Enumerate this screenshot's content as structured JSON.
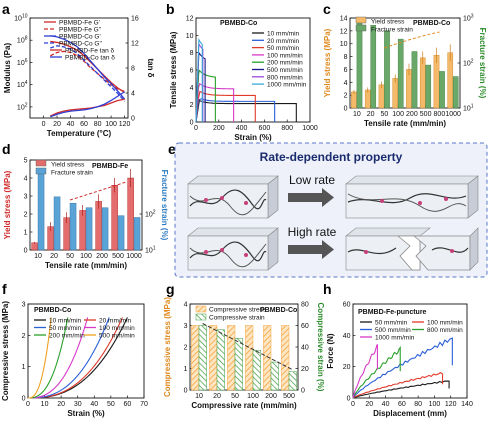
{
  "panel_labels": {
    "a": "a",
    "b": "b",
    "c": "c",
    "d": "d",
    "e": "e",
    "f": "f",
    "g": "g",
    "h": "h"
  },
  "chart_data": [
    {
      "id": "a",
      "type": "line",
      "xlabel": "Temperature (°C)",
      "ylabel": "Modulus (Pa)",
      "y2label": "tan δ",
      "xlim": [
        -20,
        125
      ],
      "ylim_log10": [
        1,
        10
      ],
      "y2lim": [
        0,
        16
      ],
      "xticks": [
        "0",
        "20",
        "40",
        "60",
        "80",
        "100",
        "120"
      ],
      "yticks": [
        "10",
        "10",
        "10",
        "10",
        "10"
      ],
      "yticks_sup": [
        "2",
        "4",
        "6",
        "8",
        "10"
      ],
      "y2ticks": [
        "0",
        "4",
        "8",
        "12",
        "16"
      ],
      "log_y": true,
      "series": [
        {
          "name": "PBMBD-Fe G'",
          "color": "#d02b2b",
          "dash": "",
          "axis": "left",
          "x": [
            10,
            20,
            30,
            40,
            50,
            60,
            70,
            80,
            90,
            100,
            110,
            120
          ],
          "y": [
            7.9,
            7.8,
            7.65,
            7.4,
            7.1,
            6.6,
            6.0,
            5.4,
            4.8,
            4.2,
            3.7,
            3.3
          ]
        },
        {
          "name": "PBMBD-Fe G''",
          "color": "#d02b2b",
          "dash": "4,2",
          "axis": "left",
          "x": [
            10,
            20,
            30,
            40,
            50,
            60,
            70,
            80,
            90,
            100,
            110,
            120
          ],
          "y": [
            6.6,
            6.9,
            7.0,
            6.9,
            6.6,
            6.1,
            5.5,
            5.0,
            4.5,
            4.0,
            3.6,
            3.4
          ]
        },
        {
          "name": "PBMBD-Co G'",
          "color": "#2f3fd3",
          "dash": "",
          "axis": "left",
          "x": [
            10,
            20,
            30,
            40,
            50,
            60,
            70,
            80,
            90,
            100,
            110,
            120
          ],
          "y": [
            8.4,
            8.3,
            8.1,
            7.8,
            7.4,
            6.8,
            6.1,
            5.4,
            4.7,
            4.1,
            3.4,
            2.7
          ]
        },
        {
          "name": "PBMBD-Co G''",
          "color": "#2f3fd3",
          "dash": "4,2",
          "axis": "left",
          "x": [
            10,
            20,
            30,
            40,
            50,
            60,
            70,
            80,
            90,
            100,
            110,
            120
          ],
          "y": [
            7.3,
            7.5,
            7.4,
            7.2,
            6.8,
            6.2,
            5.6,
            5.0,
            4.4,
            3.8,
            3.2,
            2.5
          ]
        },
        {
          "name": "PBMBD-Fe tan δ",
          "color": "#d02b2b",
          "dash": "",
          "axis": "right",
          "x": [
            10,
            20,
            30,
            40,
            50,
            60,
            70,
            80,
            90,
            100,
            110,
            120
          ],
          "y": [
            0.3,
            0.8,
            1.1,
            1.3,
            1.4,
            1.5,
            1.6,
            1.8,
            2.0,
            2.4,
            2.8,
            3.0
          ]
        },
        {
          "name": "PBMBD-Co tan δ",
          "color": "#2f3fd3",
          "dash": "",
          "axis": "right",
          "x": [
            10,
            20,
            30,
            40,
            50,
            60,
            70,
            80,
            90,
            100,
            110,
            120
          ],
          "y": [
            0.2,
            0.6,
            0.9,
            1.1,
            1.2,
            1.3,
            1.5,
            1.8,
            2.2,
            2.8,
            3.5,
            4.2
          ]
        }
      ]
    },
    {
      "id": "b",
      "type": "line",
      "title": "PBMBD-Co",
      "xlabel": "Strain (%)",
      "ylabel": "Tensile stress (MPa)",
      "xlim": [
        0,
        1000
      ],
      "ylim": [
        0,
        12
      ],
      "xticks": [
        "0",
        "200",
        "400",
        "600",
        "800",
        "1000"
      ],
      "yticks": [
        "0",
        "2",
        "4",
        "6",
        "8",
        "10",
        "12"
      ],
      "series": [
        {
          "name": "10 mm/min",
          "color": "#1a1a1a",
          "peak": 2.5,
          "break": 880
        },
        {
          "name": "20 mm/min",
          "color": "#2a5fd8",
          "peak": 2.8,
          "break": 690
        },
        {
          "name": "50 mm/min",
          "color": "#e03a2a",
          "peak": 3.6,
          "break": 520
        },
        {
          "name": "100 mm/min",
          "color": "#d83ac8",
          "peak": 4.5,
          "break": 330
        },
        {
          "name": "200 mm/min",
          "color": "#2aa02a",
          "peak": 6.0,
          "break": 170
        },
        {
          "name": "500 mm/min",
          "color": "#1a1a8a",
          "peak": 8.0,
          "break": 80
        },
        {
          "name": "800 mm/min",
          "color": "#9a4ad8",
          "peak": 9.0,
          "break": 60
        },
        {
          "name": "1000 mm/min",
          "color": "#3aa8d8",
          "peak": 9.5,
          "break": 55
        }
      ]
    },
    {
      "id": "c",
      "type": "bar",
      "title": "PBMBD-Co",
      "xlabel": "Tensile rate (mm/min)",
      "ylabel": "Yield stress (MPa)",
      "y2label": "Fracture strain (%)",
      "categories": [
        "10",
        "20",
        "50",
        "100",
        "200",
        "500",
        "800",
        "1000"
      ],
      "ylim": [
        0,
        14
      ],
      "y2_log_range": [
        1,
        3
      ],
      "yticks": [
        "0",
        "2",
        "4",
        "6",
        "8",
        "10",
        "12",
        "14"
      ],
      "y2ticks": [
        "10",
        "10",
        "10"
      ],
      "y2ticks_sup": [
        "1",
        "2",
        "3"
      ],
      "series": [
        {
          "name": "Yield stress",
          "color": "#f5b96a",
          "axis": "left",
          "values": [
            2.5,
            2.8,
            3.6,
            4.6,
            6.0,
            7.8,
            8.2,
            8.6
          ],
          "err": [
            0.3,
            0.4,
            0.5,
            0.6,
            0.9,
            1.0,
            1.2,
            1.3
          ]
        },
        {
          "name": "Fracture strain",
          "color": "#6aa86a",
          "axis": "right_log",
          "values": [
            890,
            690,
            520,
            340,
            180,
            90,
            65,
            50
          ]
        }
      ]
    },
    {
      "id": "d",
      "type": "bar",
      "title": "PBMBD-Fe",
      "xlabel": "Tensile rate (mm/min)",
      "ylabel": "Yield stress (MPa)",
      "y2label": "Fracture strain (%)",
      "categories": [
        "10",
        "20",
        "50",
        "100",
        "200",
        "500",
        "1000"
      ],
      "ylim": [
        0,
        5
      ],
      "y2_log_range": [
        1,
        3.5
      ],
      "yticks": [
        "0",
        "1",
        "2",
        "3",
        "4",
        "5"
      ],
      "y2ticks": [
        "10",
        "10"
      ],
      "y2ticks_sup": [
        "1",
        "2"
      ],
      "series": [
        {
          "name": "Yield stress",
          "color": "#e36c6c",
          "axis": "left",
          "values": [
            0.4,
            1.3,
            1.8,
            2.2,
            2.7,
            3.6,
            4.0
          ],
          "err": [
            0.05,
            0.25,
            0.3,
            0.3,
            0.4,
            0.4,
            0.5
          ]
        },
        {
          "name": "Fracture strain",
          "color": "#5aa3d6",
          "axis": "right_log",
          "values": [
            1500,
            300,
            200,
            150,
            150,
            90,
            80
          ]
        }
      ]
    },
    {
      "id": "f",
      "type": "line",
      "title": "PBMBD-Co",
      "xlabel": "Strain (%)",
      "ylabel": "Compressive stress (MPa)",
      "xlim": [
        0,
        70
      ],
      "ylim": [
        0,
        3.5
      ],
      "xticks": [
        "0",
        "10",
        "20",
        "30",
        "40",
        "50",
        "60",
        "70"
      ],
      "yticks": [
        "0",
        "1",
        "2",
        "3"
      ],
      "series": [
        {
          "name": "10 mm/min",
          "color": "#1a1a1a",
          "break": 60
        },
        {
          "name": "20 mm/min",
          "color": "#e03a2a",
          "break": 57
        },
        {
          "name": "50 mm/min",
          "color": "#2a5fd8",
          "break": 49
        },
        {
          "name": "100 mm/min",
          "color": "#d83ac8",
          "break": 36
        },
        {
          "name": "200 mm/min",
          "color": "#2aa02a",
          "break": 24
        },
        {
          "name": "500 mm/min",
          "color": "#f0a020",
          "break": 14
        }
      ]
    },
    {
      "id": "g",
      "type": "bar",
      "title": "PBMBD-Co",
      "xlabel": "Compressive rate (mm/min)",
      "ylabel": "Compressive stress (MPa)",
      "y2label": "Compressive strain (%)",
      "categories": [
        "10",
        "20",
        "50",
        "100",
        "200",
        "500"
      ],
      "ylim": [
        0,
        4
      ],
      "y2lim": [
        0,
        80
      ],
      "yticks": [
        "0",
        "1",
        "2",
        "3",
        "4"
      ],
      "y2ticks": [
        "0",
        "20",
        "40",
        "60",
        "80"
      ],
      "series": [
        {
          "name": "Compressive stress",
          "color": "#f5a43c",
          "axis": "left",
          "values": [
            3,
            3,
            3,
            3,
            3,
            3
          ]
        },
        {
          "name": "Compressive strain",
          "color": "#3a9a3a",
          "axis": "right",
          "values": [
            60,
            56,
            48,
            37,
            26,
            17
          ]
        }
      ]
    },
    {
      "id": "h",
      "type": "line",
      "title": "PBMBD-Fe-puncture",
      "xlabel": "Displacement (mm)",
      "ylabel": "Force (N)",
      "xlim": [
        0,
        140
      ],
      "ylim": [
        0,
        60
      ],
      "xticks": [
        "0",
        "20",
        "40",
        "60",
        "80",
        "100",
        "120",
        "140"
      ],
      "yticks": [
        "0",
        "20",
        "40",
        "60"
      ],
      "series": [
        {
          "name": "50 mm/min",
          "color": "#1a1a1a",
          "break": 118,
          "fmax": 11
        },
        {
          "name": "100 mm/min",
          "color": "#e03a2a",
          "break": 110,
          "fmax": 16
        },
        {
          "name": "500 mm/min",
          "color": "#2a5fd8",
          "break": 122,
          "fmax": 38
        },
        {
          "name": "800 mm/min",
          "color": "#2aa02a",
          "break": 58,
          "fmax": 31
        },
        {
          "name": "1000 mm/min",
          "color": "#d83ac8",
          "break": 30,
          "fmax": 33
        }
      ]
    }
  ],
  "schematic": {
    "title": "Rate-dependent property",
    "low_rate": "Low rate",
    "high_rate": "High rate"
  }
}
